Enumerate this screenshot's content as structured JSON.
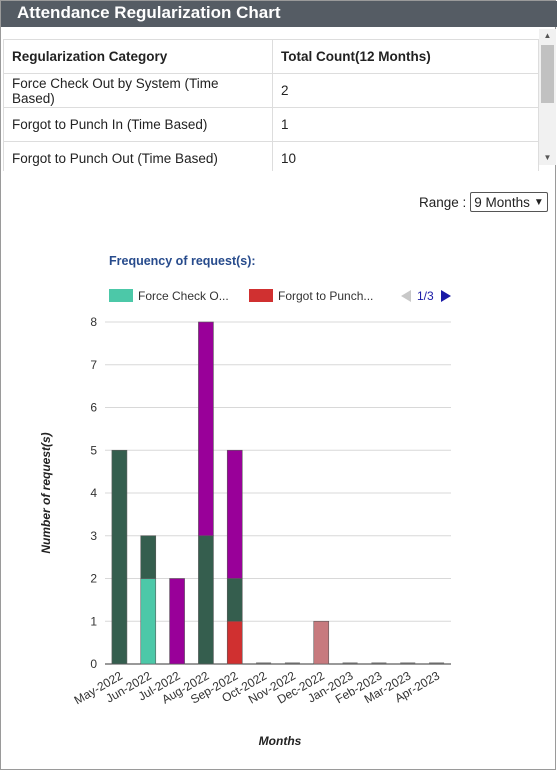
{
  "header": {
    "title": "Attendance Regularization Chart"
  },
  "table": {
    "columns": [
      "Regularization Category",
      "Total Count(12 Months)"
    ],
    "rows": [
      [
        "Force Check Out by System (Time Based)",
        "2"
      ],
      [
        "Forgot to Punch In (Time Based)",
        "1"
      ],
      [
        "Forgot to Punch Out (Time Based)",
        "10"
      ]
    ]
  },
  "range": {
    "label": "Range :",
    "selected": "9 Months"
  },
  "chart_title": "Frequency of request(s):",
  "legend": {
    "items": [
      "Force Check O...",
      "Forgot to Punch..."
    ],
    "page": "1/3"
  },
  "colors": {
    "header_bg": "#555c64",
    "dark_green": "#355e4e",
    "teal": "#4cc8a8",
    "purple": "#990099",
    "red": "#d03030",
    "pink": "#c77a7e",
    "title_blue": "#274b8c",
    "pager_blue": "#1a1aa6"
  },
  "chart_data": {
    "type": "bar",
    "stacked": true,
    "categories": [
      "May-2022",
      "Jun-2022",
      "Jul-2022",
      "Aug-2022",
      "Sep-2022",
      "Oct-2022",
      "Nov-2022",
      "Dec-2022",
      "Jan-2023",
      "Feb-2023",
      "Mar-2023",
      "Apr-2023"
    ],
    "series": [
      {
        "name": "Force Check O...",
        "color": "#4cc8a8",
        "values": [
          0,
          2,
          0,
          0,
          0,
          0,
          0,
          0,
          0,
          0,
          0,
          0
        ]
      },
      {
        "name": "Forgot to Punch...",
        "color": "#d03030",
        "values": [
          0,
          0,
          0,
          0,
          1,
          0,
          0,
          0,
          0,
          0,
          0,
          0
        ]
      },
      {
        "color": "#355e4e",
        "values": [
          5,
          1,
          0,
          3,
          1,
          0,
          0,
          0,
          0,
          0,
          0,
          0
        ]
      },
      {
        "color": "#990099",
        "values": [
          0,
          0,
          2,
          5,
          3,
          0,
          0,
          0,
          0,
          0,
          0,
          0
        ]
      },
      {
        "color": "#c77a7e",
        "values": [
          0,
          0,
          0,
          0,
          0,
          0,
          0,
          1,
          0,
          0,
          0,
          0
        ]
      }
    ],
    "xlabel": "Months",
    "ylabel": "Number of request(s)",
    "ylim": [
      0,
      8
    ],
    "yticks": [
      "0",
      "1",
      "2",
      "3",
      "4",
      "5",
      "6",
      "7",
      "8"
    ],
    "grid": true
  }
}
